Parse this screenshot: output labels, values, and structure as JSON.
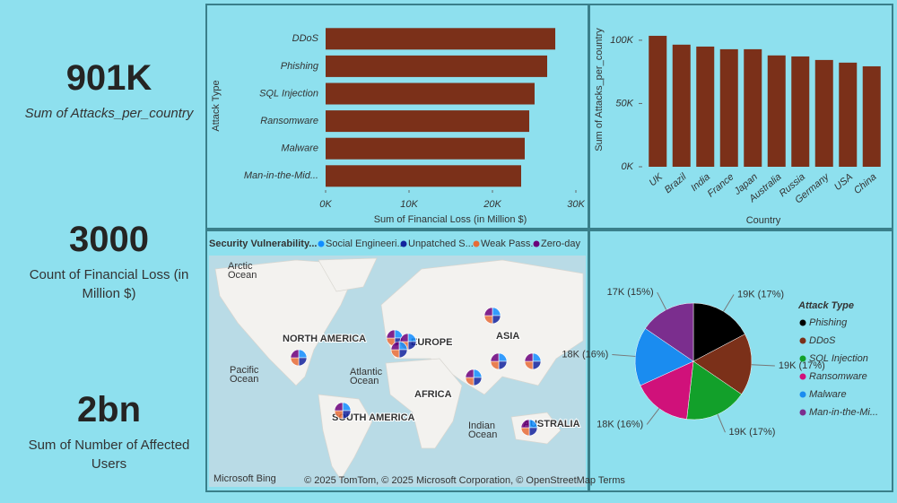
{
  "cards": [
    {
      "value": "901K",
      "label": "Sum of Attacks_per_country"
    },
    {
      "value": "3000",
      "label": "Count of Financial Loss (in Million $)"
    },
    {
      "value": "2bn",
      "label": "Sum of Number of Affected Users"
    }
  ],
  "chart_data": [
    {
      "type": "bar",
      "orientation": "horizontal",
      "y_label": "Attack Type",
      "x_label": "Sum of Financial Loss (in Million $)",
      "categories": [
        "DDoS",
        "Phishing",
        "SQL Injection",
        "Ransomware",
        "Malware",
        "Man-in-the-Mid..."
      ],
      "values": [
        27530,
        26560,
        25050,
        24410,
        23870,
        23440
      ],
      "color": "#7b3019",
      "xlim": [
        0,
        30000
      ],
      "xticks": [
        {
          "value": 0,
          "label": "0K"
        },
        {
          "value": 10000,
          "label": "10K"
        },
        {
          "value": 20000,
          "label": "20K"
        },
        {
          "value": 30000,
          "label": "30K"
        }
      ]
    },
    {
      "type": "bar",
      "orientation": "vertical",
      "y_label": "Sum of Attacks_per_country",
      "x_label": "Country",
      "categories": [
        "UK",
        "Brazil",
        "India",
        "France",
        "Japan",
        "Australia",
        "Russia",
        "Germany",
        "USA",
        "China"
      ],
      "values": [
        103500,
        96500,
        95000,
        92900,
        92900,
        88000,
        87200,
        84400,
        82300,
        79400
      ],
      "color": "#7b3019",
      "ylim": [
        0,
        107000
      ],
      "yticks": [
        {
          "value": 0,
          "label": "0K"
        },
        {
          "value": 50000,
          "label": "50K"
        },
        {
          "value": 100000,
          "label": "100K"
        }
      ]
    },
    {
      "type": "pie",
      "legend_title": "Attack Type",
      "categories": [
        "Phishing",
        "DDoS",
        "SQL Injection",
        "Ransomware",
        "Malware",
        "Man-in-the-Mi..."
      ],
      "values": [
        19000,
        19000,
        19000,
        18000,
        18000,
        17000
      ],
      "value_labels": [
        "19K (17%)",
        "19K (17%)",
        "19K (17%)",
        "18K (16%)",
        "18K (16%)",
        "17K (15%)"
      ],
      "colors": [
        "#000000",
        "#7b3019",
        "#12a02a",
        "#d0117a",
        "#1a8cf0",
        "#7b2e8e"
      ]
    }
  ],
  "map": {
    "legend_title": "Security Vulnerability...",
    "legend": [
      {
        "name": "Social Engineeri...",
        "color": "#118dff"
      },
      {
        "name": "Unpatched S...",
        "color": "#12239e"
      },
      {
        "name": "Weak Pass...",
        "color": "#e66c37"
      },
      {
        "name": "Zero-day",
        "color": "#6b007b"
      }
    ],
    "labels": [
      {
        "lines": [
          "NORTH AMERICA"
        ],
        "kind": "land"
      },
      {
        "lines": [
          "EUROPE"
        ],
        "kind": "land"
      },
      {
        "lines": [
          "ASIA"
        ],
        "kind": "land"
      },
      {
        "lines": [
          "AFRICA"
        ],
        "kind": "land"
      },
      {
        "lines": [
          "SOUTH AMERICA"
        ],
        "kind": "land"
      },
      {
        "lines": [
          "AUSTRALIA"
        ],
        "kind": "land"
      },
      {
        "lines": [
          "Arctic",
          "Ocean"
        ],
        "kind": "sea"
      },
      {
        "lines": [
          "Pacific",
          "Ocean"
        ],
        "kind": "sea"
      },
      {
        "lines": [
          "Atlantic",
          "Ocean"
        ],
        "kind": "sea"
      },
      {
        "lines": [
          "Indian",
          "Ocean"
        ],
        "kind": "sea"
      }
    ],
    "attribution": "© 2025 TomTom, © 2025 Microsoft Corporation, © OpenStreetMap  Terms",
    "logo": "Microsoft Bing"
  }
}
